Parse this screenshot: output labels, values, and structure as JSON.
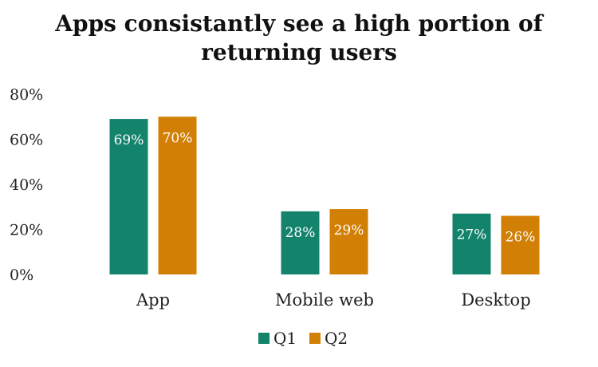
{
  "chart_data": {
    "type": "bar",
    "title_lines": [
      "Apps consistantly see a high portion of",
      "returning users"
    ],
    "categories": [
      "App",
      "Mobile web",
      "Desktop"
    ],
    "series": [
      {
        "name": "Q1",
        "values": [
          69,
          28,
          27
        ],
        "labels": [
          "69%",
          "28%",
          "27%"
        ],
        "color": "#13836c"
      },
      {
        "name": "Q2",
        "values": [
          70,
          29,
          26
        ],
        "labels": [
          "70%",
          "29%",
          "26%"
        ],
        "color": "#d17f05"
      }
    ],
    "yticks": [
      "0%",
      "20%",
      "40%",
      "60%",
      "80%"
    ],
    "ytick_values": [
      0,
      20,
      40,
      60,
      80
    ],
    "ylim": [
      0,
      80
    ],
    "grid": false,
    "legend_position": "bottom"
  }
}
